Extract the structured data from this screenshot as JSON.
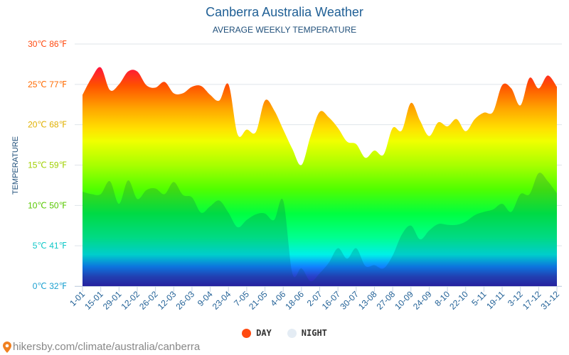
{
  "chart_data": {
    "type": "area",
    "title": "Canberra Australia Weather",
    "subtitle": "AVERAGE WEEKLY TEMPERATURE",
    "ylabel": "TEMPERATURE",
    "ylim": [
      0,
      30
    ],
    "yticks": [
      {
        "value": 0,
        "label": "0℃ 32℉",
        "color": "#1aa0d0"
      },
      {
        "value": 5,
        "label": "5℃ 41℉",
        "color": "#10c8c8"
      },
      {
        "value": 10,
        "label": "10℃ 50℉",
        "color": "#58c800"
      },
      {
        "value": 15,
        "label": "15℃ 59℉",
        "color": "#a0d000"
      },
      {
        "value": 20,
        "label": "20℃ 68℉",
        "color": "#e0b000"
      },
      {
        "value": 25,
        "label": "25℃ 77℉",
        "color": "#ff6a00"
      },
      {
        "value": 30,
        "label": "30℃ 86℉",
        "color": "#ff4a10"
      }
    ],
    "xtick_labels": [
      "1-01",
      "15-01",
      "29-01",
      "12-02",
      "26-02",
      "12-03",
      "26-03",
      "9-04",
      "23-04",
      "7-05",
      "21-05",
      "4-06",
      "18-06",
      "2-07",
      "16-07",
      "30-07",
      "13-08",
      "27-08",
      "10-09",
      "24-09",
      "8-10",
      "22-10",
      "5-11",
      "19-11",
      "3-12",
      "17-12",
      "31-12"
    ],
    "grid": true,
    "legend_position": "bottom-center",
    "series": [
      {
        "name": "DAY",
        "color": "#ff4a10",
        "values": [
          23.7,
          25.8,
          27.1,
          24.3,
          25,
          26.6,
          26.6,
          24.9,
          24.6,
          25.3,
          23.9,
          23.9,
          24.7,
          24.8,
          23.7,
          23,
          25,
          18.8,
          19.4,
          19.1,
          23,
          21.8,
          19.4,
          17,
          15,
          18.6,
          21.6,
          20.9,
          19.6,
          17.9,
          17.6,
          15.9,
          16.8,
          16.3,
          19.6,
          19.3,
          22.7,
          20.5,
          18.6,
          20.3,
          19.8,
          20.7,
          19.2,
          20.7,
          21.5,
          21.6,
          24.9,
          24.5,
          22.4,
          25.8,
          24.5,
          26.1,
          24.7
        ]
      },
      {
        "name": "NIGHT",
        "color": "#e4ecf4",
        "values": [
          11.7,
          11.4,
          11.4,
          13,
          10.2,
          13.1,
          10.8,
          11.9,
          12.1,
          11.4,
          12.9,
          11.3,
          11,
          9.1,
          9.9,
          10.6,
          9.1,
          7.3,
          8.2,
          8.9,
          9,
          8.2,
          10.6,
          1.6,
          2.2,
          0.6,
          1.6,
          2.9,
          4.7,
          3.4,
          4.7,
          2.5,
          2.6,
          2.2,
          3.8,
          6.4,
          7.5,
          5.8,
          6.9,
          7.7,
          7.6,
          7.6,
          8,
          8.8,
          9.2,
          9.5,
          10.2,
          9.2,
          11.4,
          11.4,
          14,
          13,
          11.5
        ]
      }
    ]
  },
  "source": "hikersby.com/climate/australia/canberra"
}
